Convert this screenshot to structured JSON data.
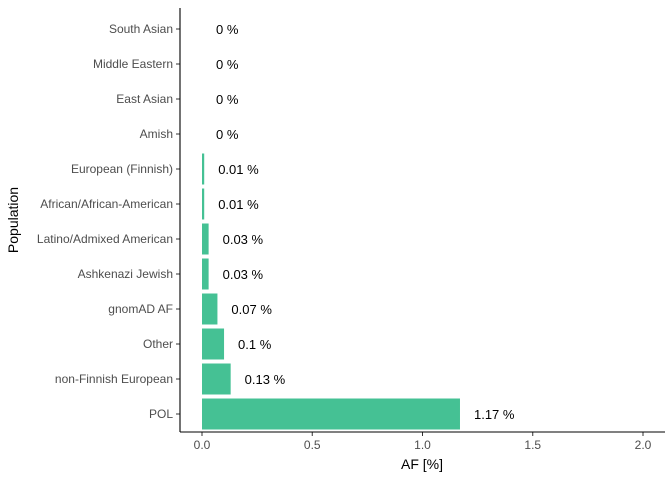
{
  "chart_data": {
    "type": "bar",
    "orientation": "horizontal",
    "categories": [
      "South Asian",
      "Middle Eastern",
      "East Asian",
      "Amish",
      "European (Finnish)",
      "African/African-American",
      "Latino/Admixed American",
      "Ashkenazi Jewish",
      "gnomAD AF",
      "Other",
      "non-Finnish European",
      "POL"
    ],
    "values": [
      0,
      0,
      0,
      0,
      0.01,
      0.01,
      0.03,
      0.03,
      0.07,
      0.1,
      0.13,
      1.17
    ],
    "data_labels": [
      "0 %",
      "0 %",
      "0 %",
      "0 %",
      "0.01 %",
      "0.01 %",
      "0.03 %",
      "0.03 %",
      "0.07 %",
      "0.1 %",
      "0.13 %",
      "1.17 %"
    ],
    "xlabel": "AF [%]",
    "ylabel": "Population",
    "xlim": [
      0,
      2.0
    ],
    "xticks": [
      0,
      0.5,
      1.0,
      1.5,
      2.0
    ],
    "xtick_labels": [
      "0.0",
      "0.5",
      "1.0",
      "1.5",
      "2.0"
    ],
    "grid": false,
    "bar_color": "#45c194"
  }
}
